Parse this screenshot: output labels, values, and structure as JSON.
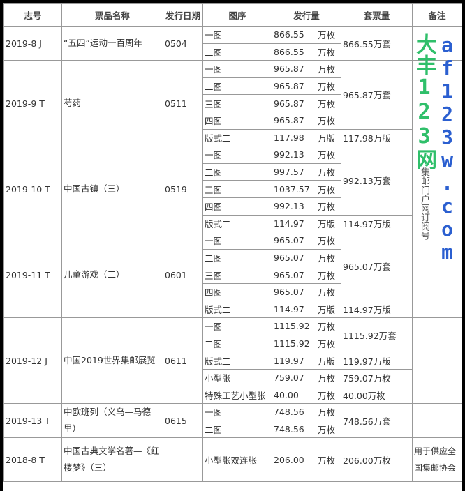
{
  "headers": [
    "志号",
    "票品名称",
    "发行日期",
    "图序",
    "发行量",
    "套票量",
    "备注"
  ],
  "groups": [
    {
      "id": "2019-8 J",
      "name": "“五四”运动一百周年",
      "date": "0504",
      "rows": [
        {
          "fig": "一图",
          "qty": "866.55",
          "unit": "万枚"
        },
        {
          "fig": "二图",
          "qty": "866.55",
          "unit": "万枚"
        }
      ],
      "sets": [
        {
          "text": "866.55万套",
          "span": 2
        }
      ],
      "remark": ""
    },
    {
      "id": "2019-9 T",
      "name": "芍药",
      "date": "0511",
      "rows": [
        {
          "fig": "一图",
          "qty": "965.87",
          "unit": "万枚"
        },
        {
          "fig": "二图",
          "qty": "965.87",
          "unit": "万枚"
        },
        {
          "fig": "三图",
          "qty": "965.87",
          "unit": "万枚"
        },
        {
          "fig": "四图",
          "qty": "965.87",
          "unit": "万枚"
        },
        {
          "fig": "版式二",
          "qty": "117.98",
          "unit": "万版"
        }
      ],
      "sets": [
        {
          "text": "965.87万套",
          "span": 4
        },
        {
          "text": "117.98万版",
          "span": 1
        }
      ],
      "remark": ""
    },
    {
      "id": "2019-10 T",
      "name": "中国古镇（三）",
      "date": "0519",
      "rows": [
        {
          "fig": "一图",
          "qty": "992.13",
          "unit": "万枚"
        },
        {
          "fig": "二图",
          "qty": "997.57",
          "unit": "万枚"
        },
        {
          "fig": "三图",
          "qty": "1037.57",
          "unit": "万枚"
        },
        {
          "fig": "四图",
          "qty": "992.13",
          "unit": "万枚"
        },
        {
          "fig": "版式二",
          "qty": "114.97",
          "unit": "万版"
        }
      ],
      "sets": [
        {
          "text": "992.13万套",
          "span": 4
        },
        {
          "text": "114.97万版",
          "span": 1
        }
      ],
      "remark": ""
    },
    {
      "id": "2019-11 T",
      "name": "儿童游戏（二）",
      "date": "0601",
      "rows": [
        {
          "fig": "一图",
          "qty": "965.07",
          "unit": "万枚"
        },
        {
          "fig": "二图",
          "qty": "965.07",
          "unit": "万枚"
        },
        {
          "fig": "三图",
          "qty": "965.07",
          "unit": "万枚"
        },
        {
          "fig": "四图",
          "qty": "965.07",
          "unit": "万枚"
        },
        {
          "fig": "版式二",
          "qty": "114.97",
          "unit": "万版"
        }
      ],
      "sets": [
        {
          "text": "965.07万套",
          "span": 4
        },
        {
          "text": "114.97万版",
          "span": 1
        }
      ],
      "remark": ""
    },
    {
      "id": "2019-12 J",
      "name": "中国2019世界集邮展览",
      "date": "0611",
      "rows": [
        {
          "fig": "一图",
          "qty": "1115.92",
          "unit": "万枚"
        },
        {
          "fig": "二图",
          "qty": "1115.92",
          "unit": "万枚"
        },
        {
          "fig": "版式二",
          "qty": "119.97",
          "unit": "万版"
        },
        {
          "fig": "小型张",
          "qty": "759.07",
          "unit": "万枚"
        },
        {
          "fig": "特殊工艺小型张",
          "qty": "40.00",
          "unit": "万枚"
        }
      ],
      "sets": [
        {
          "text": "1115.92万套",
          "span": 2
        },
        {
          "text": "119.97万版",
          "span": 1
        },
        {
          "text": "759.07万枚",
          "span": 1
        },
        {
          "text": "40.00万枚",
          "span": 1
        }
      ],
      "remark": ""
    },
    {
      "id": "2019-13 T",
      "name": "中欧班列（义乌—马德里）",
      "date": "0615",
      "rows": [
        {
          "fig": "一图",
          "qty": "748.56",
          "unit": "万枚"
        },
        {
          "fig": "二图",
          "qty": "748.56",
          "unit": "万枚"
        }
      ],
      "sets": [
        {
          "text": "748.56万套",
          "span": 2
        }
      ],
      "remark": ""
    },
    {
      "id": "2018-8 T",
      "name": "中国古典文学名著—《红楼梦》（三）",
      "date": "",
      "rows": [
        {
          "fig": "小型张双连张",
          "qty": "206.00",
          "unit": "万枚",
          "tall": true
        }
      ],
      "sets": [
        {
          "text": "206.00万枚",
          "span": 1
        }
      ],
      "remark": "用于供应全国集邮协会"
    }
  ],
  "watermark": {
    "line1": "大丰123网",
    "line2": "af123w.com",
    "line3": "集邮门户网订阅号",
    "color1": "#2fbf6a",
    "color2": "#2b5fd0"
  }
}
